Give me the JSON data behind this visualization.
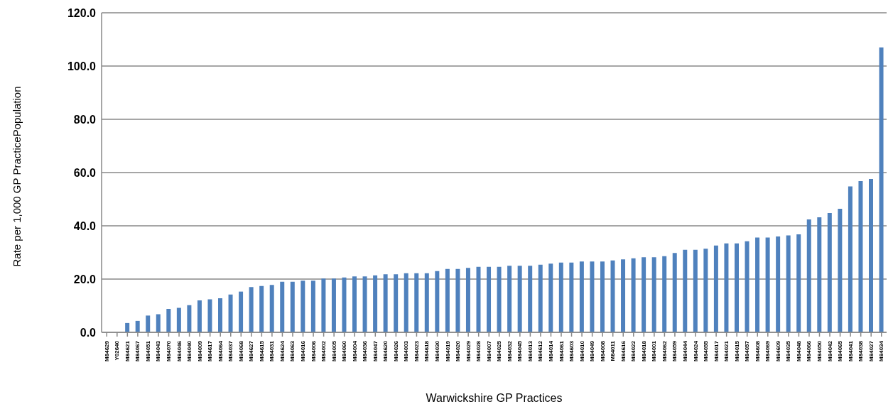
{
  "chart_data": {
    "type": "bar",
    "xlabel": "Warwickshire GP Practices",
    "ylabel": "Rate per 1,000 GP PracticePopulation",
    "categories": [
      "M84629",
      "Y02640",
      "M84621",
      "M84067",
      "M84051",
      "M84043",
      "M84070",
      "M84046",
      "M84040",
      "M84009",
      "M84617",
      "M84064",
      "M84037",
      "M84068",
      "M84627",
      "M84615",
      "M84031",
      "M84624",
      "M84063",
      "M84016",
      "M84006",
      "M84002",
      "M84005",
      "M84060",
      "M84004",
      "M84036",
      "M84047",
      "M84620",
      "M84026",
      "M84003",
      "M84023",
      "M84618",
      "M84030",
      "M84019",
      "M84020",
      "M84029",
      "M84028",
      "M84007",
      "M84025",
      "M84032",
      "M84045",
      "M84013",
      "M84612",
      "M84014",
      "M84061",
      "M84603",
      "M84010",
      "M84049",
      "M84008",
      "M84011",
      "M84616",
      "M84022",
      "M84018",
      "M84001",
      "M84062",
      "M84059",
      "M84044",
      "M84024",
      "M84055",
      "M84017",
      "M84021",
      "M84015",
      "M84057",
      "M84608",
      "M84069",
      "M84609",
      "M84035",
      "M84048",
      "M84066",
      "M84050",
      "M84042",
      "M84065",
      "M84041",
      "M84038",
      "M84027",
      "M84034"
    ],
    "values": [
      null,
      null,
      3.5,
      4.3,
      6.3,
      6.8,
      8.8,
      9.2,
      10.2,
      12.0,
      12.4,
      12.8,
      14.2,
      15.3,
      17.0,
      17.4,
      17.8,
      19.0,
      19.0,
      19.4,
      19.4,
      20.2,
      20.2,
      20.6,
      21.0,
      21.0,
      21.4,
      21.8,
      21.8,
      22.2,
      22.2,
      22.2,
      23.0,
      23.8,
      23.8,
      24.2,
      24.6,
      24.6,
      24.6,
      25.0,
      25.0,
      25.0,
      25.4,
      25.8,
      26.2,
      26.2,
      26.6,
      26.6,
      26.6,
      27.0,
      27.4,
      27.8,
      28.2,
      28.2,
      28.6,
      29.8,
      31.0,
      31.0,
      31.4,
      32.6,
      33.4,
      33.4,
      34.2,
      35.6,
      35.6,
      36.0,
      36.4,
      36.8,
      42.4,
      43.2,
      44.8,
      46.4,
      54.8,
      56.8,
      57.6,
      107.0
    ],
    "color": "#4f81bd",
    "ylim": [
      0,
      120
    ],
    "yticks": [
      {
        "value": 0,
        "label": "0.0"
      },
      {
        "value": 20,
        "label": "20.0"
      },
      {
        "value": 40,
        "label": "40.0"
      },
      {
        "value": 60,
        "label": "60.0"
      },
      {
        "value": 80,
        "label": "80.0"
      },
      {
        "value": 100,
        "label": "100.0"
      },
      {
        "value": 120,
        "label": "120.0"
      }
    ],
    "grid": "y",
    "legend": false
  }
}
